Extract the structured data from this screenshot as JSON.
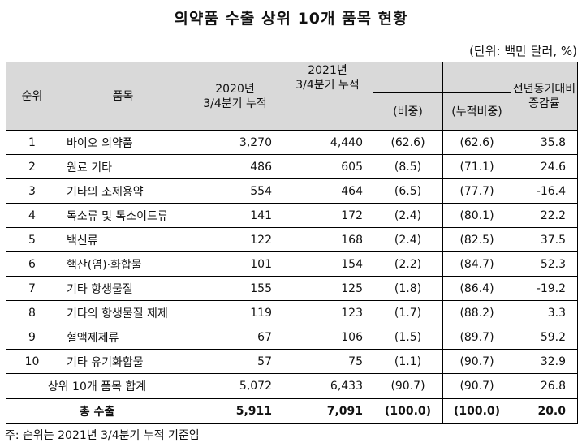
{
  "title": "의약품 수출 상위 10개 품목 현황",
  "unit": "(단위: 백만 달러, %)",
  "headers": {
    "rank": "순위",
    "item": "품목",
    "y2020": "2020년\n3/4분기 누적",
    "y2021": "2021년\n3/4분기 누적",
    "share": "(비중)",
    "cum_share": "(누적비중)",
    "change": "전년동기대비\n증감률"
  },
  "rows": [
    {
      "rank": "1",
      "item": "바이오 의약품",
      "y2020": "3,270",
      "y2021": "4,440",
      "share": "(62.6)",
      "cum_share": "(62.6)",
      "change": "35.8"
    },
    {
      "rank": "2",
      "item": "원료 기타",
      "y2020": "486",
      "y2021": "605",
      "share": "(8.5)",
      "cum_share": "(71.1)",
      "change": "24.6"
    },
    {
      "rank": "3",
      "item": "기타의 조제용약",
      "y2020": "554",
      "y2021": "464",
      "share": "(6.5)",
      "cum_share": "(77.7)",
      "change": "-16.4"
    },
    {
      "rank": "4",
      "item": "독소류 및 톡소이드류",
      "y2020": "141",
      "y2021": "172",
      "share": "(2.4)",
      "cum_share": "(80.1)",
      "change": "22.2"
    },
    {
      "rank": "5",
      "item": "백신류",
      "y2020": "122",
      "y2021": "168",
      "share": "(2.4)",
      "cum_share": "(82.5)",
      "change": "37.5"
    },
    {
      "rank": "6",
      "item": "핵산(염)·화합물",
      "y2020": "101",
      "y2021": "154",
      "share": "(2.2)",
      "cum_share": "(84.7)",
      "change": "52.3"
    },
    {
      "rank": "7",
      "item": "기타 항생물질",
      "y2020": "155",
      "y2021": "125",
      "share": "(1.8)",
      "cum_share": "(86.4)",
      "change": "-19.2"
    },
    {
      "rank": "8",
      "item": "기타의 항생물질 제제",
      "y2020": "119",
      "y2021": "123",
      "share": "(1.7)",
      "cum_share": "(88.2)",
      "change": "3.3"
    },
    {
      "rank": "9",
      "item": "혈액제제류",
      "y2020": "67",
      "y2021": "106",
      "share": "(1.5)",
      "cum_share": "(89.7)",
      "change": "59.2"
    },
    {
      "rank": "10",
      "item": "기타 유기화합물",
      "y2020": "57",
      "y2021": "75",
      "share": "(1.1)",
      "cum_share": "(90.7)",
      "change": "32.9"
    }
  ],
  "subtotal": {
    "label": "상위 10개 품목 합계",
    "y2020": "5,072",
    "y2021": "6,433",
    "share": "(90.7)",
    "cum_share": "(90.7)",
    "change": "26.8"
  },
  "total": {
    "label": "총 수출",
    "y2020": "5,911",
    "y2021": "7,091",
    "share": "(100.0)",
    "cum_share": "(100.0)",
    "change": "20.0"
  },
  "note": "주: 순위는 2021년 3/4분기 누적 기준임"
}
